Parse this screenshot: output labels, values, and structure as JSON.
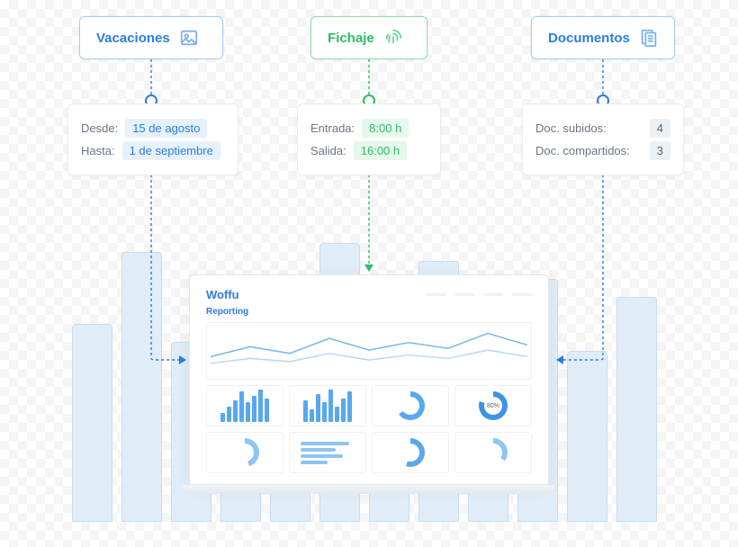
{
  "categories": {
    "vacaciones": {
      "label": "Vacaciones",
      "color": "#2b7de0",
      "border": "#a8cdf5"
    },
    "fichaje": {
      "label": "Fichaje",
      "color": "#2ebd65",
      "border": "#8de2a8"
    },
    "documentos": {
      "label": "Documentos",
      "color": "#2b7de0",
      "border": "#a8cdf5"
    }
  },
  "details": {
    "vacaciones": {
      "rows": [
        {
          "label": "Desde:",
          "value": "15 de agosto"
        },
        {
          "label": "Hasta:",
          "value": "1 de septiembre"
        }
      ],
      "value_style": "blue"
    },
    "fichaje": {
      "rows": [
        {
          "label": "Entrada:",
          "value": "8:00 h"
        },
        {
          "label": "Salida:",
          "value": "16:00 h"
        }
      ],
      "value_style": "green"
    },
    "documentos": {
      "rows": [
        {
          "label": "Doc. subidos:",
          "value": "4"
        },
        {
          "label": "Doc. compartidos:",
          "value": "3"
        }
      ],
      "value_style": "grey"
    }
  },
  "laptop": {
    "brand": "Woffu",
    "section": "Reporting",
    "line_chart": {
      "type": "line",
      "series": [
        {
          "color": "#7ab8ef",
          "points": [
            18,
            30,
            22,
            40,
            26,
            35,
            28,
            46,
            32
          ]
        },
        {
          "color": "#bcd9f3",
          "points": [
            10,
            16,
            12,
            22,
            14,
            20,
            16,
            26,
            18
          ]
        }
      ]
    },
    "panels": [
      {
        "type": "bars",
        "values": [
          8,
          14,
          20,
          28,
          18,
          24,
          30,
          22
        ],
        "color": "#59a8ee"
      },
      {
        "type": "bars",
        "values": [
          20,
          12,
          26,
          18,
          30,
          14,
          22,
          28
        ],
        "color": "#59a8ee"
      },
      {
        "type": "donut",
        "pct": 65,
        "color": "#59a8ee",
        "track": "#dbe8f5"
      },
      {
        "type": "donut",
        "pct": 80,
        "color": "#3d94e6",
        "track": "#dbe8f5",
        "label": "80%"
      },
      {
        "type": "donut",
        "pct": 45,
        "color": "#8fc5f1",
        "track": "#e6eff9"
      },
      {
        "type": "progress",
        "rows": [
          90,
          65,
          78,
          50
        ],
        "color": "#8fc5f1"
      },
      {
        "type": "donut",
        "pct": 55,
        "color": "#59a8ee",
        "track": "#dbe8f5"
      },
      {
        "type": "donut",
        "pct": 35,
        "color": "#8fc5f1",
        "track": "#e6eff9"
      }
    ]
  },
  "background_bars": {
    "color": "#e0ecf8",
    "border": "#c9ddf1",
    "heights": [
      220,
      300,
      200,
      260,
      180,
      310,
      230,
      290,
      210,
      270,
      190,
      250
    ]
  },
  "connectors": {
    "blue": "#2b7de0",
    "green": "#2ebd65"
  }
}
